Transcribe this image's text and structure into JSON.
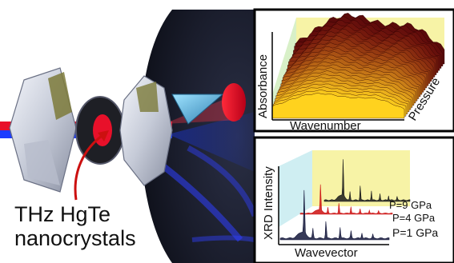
{
  "left_panel": {
    "caption_lines": [
      "THz HgTe",
      "nanocrystals"
    ]
  },
  "top_panel": {
    "ylabel": "Absorbance",
    "xlabel": "Wavenumber",
    "zlabel": "Pressure"
  },
  "bottom_panel": {
    "ylabel": "XRD Intensity",
    "xlabel": "Wavevector",
    "series": [
      {
        "label": "P=9 GPa",
        "color": "#1a1a1a"
      },
      {
        "label": "P=4 GPa",
        "color": "#cc1111"
      },
      {
        "label": "P=1 GPa",
        "color": "#13163a"
      }
    ]
  },
  "colors": {
    "beam_red": "#e8102a",
    "beam_blue": "#1c3cff",
    "dark_sphere": "#1a1d2c",
    "plot_bg_yellow": "#f7f3a6",
    "plot_bg_green": "#d8f0c8",
    "plot_bg_cyan": "#cfeef2"
  }
}
